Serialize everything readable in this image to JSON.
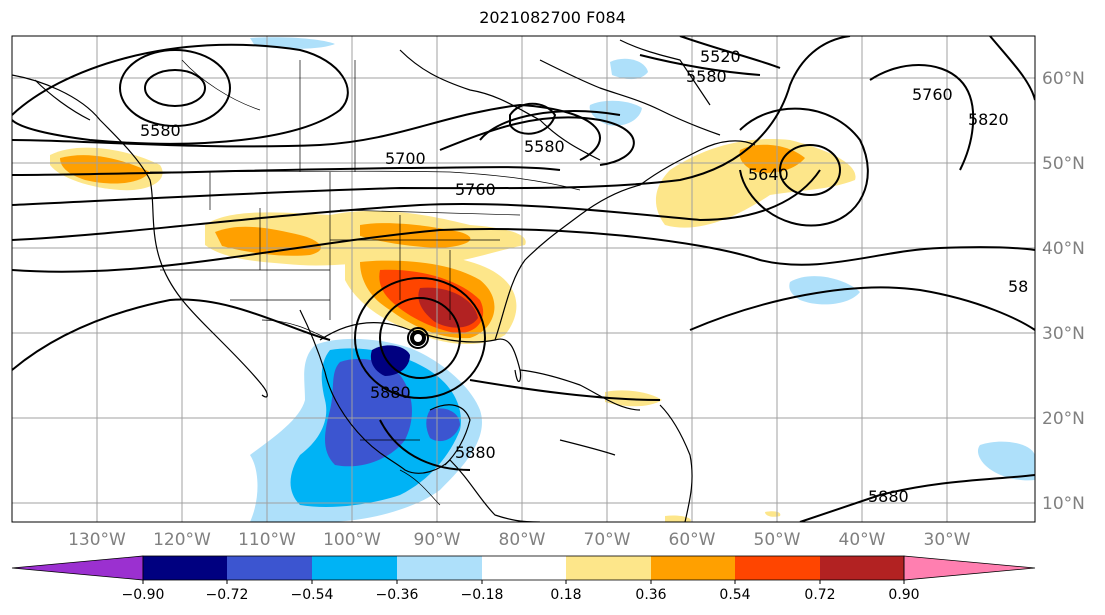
{
  "title": "2021082700 F084",
  "longitude_labels": [
    "130°W",
    "120°W",
    "110°W",
    "100°W",
    "90°W",
    "80°W",
    "70°W",
    "60°W",
    "50°W",
    "40°W",
    "30°W"
  ],
  "latitude_labels": [
    "60°N",
    "50°N",
    "40°N",
    "30°N",
    "20°N",
    "10°N"
  ],
  "colorbar": {
    "tick_labels": [
      "−0.90",
      "−0.72",
      "−0.54",
      "−0.36",
      "−0.18",
      "0.18",
      "0.36",
      "0.54",
      "0.72",
      "0.90"
    ],
    "colors": [
      "#9b30d0",
      "#000080",
      "#3c55d0",
      "#00b3f5",
      "#aee0fa",
      "#ffffff",
      "#fde68a",
      "#ffa000",
      "#ff4500",
      "#b22222",
      "#ff7fb0"
    ]
  },
  "contour_labels": [
    "5520",
    "5580",
    "5580",
    "5580",
    "5700",
    "5760",
    "5640",
    "5760",
    "5820",
    "5880",
    "5880",
    "5880",
    "58"
  ],
  "legend_colors": {
    "grid": "#a0a0a0",
    "contour": "#000000",
    "coast": "#000000"
  }
}
